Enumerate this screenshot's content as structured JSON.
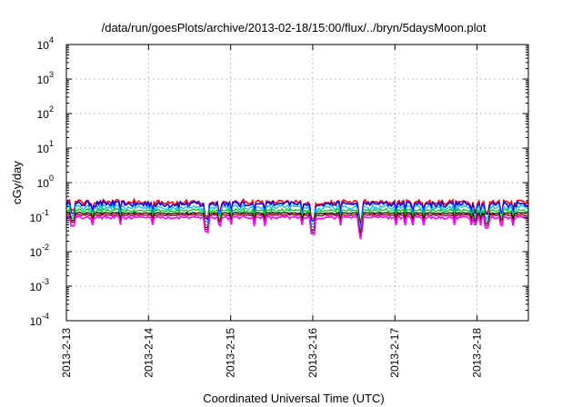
{
  "chart_data": {
    "type": "line",
    "title": "/data/run/goesPlots/archive/2013-02-18/15:00/flux/../bryn/5daysMoon.plot",
    "xlabel": "Coordinated Universal Time (UTC)",
    "ylabel": "cGy/day",
    "yscale": "log",
    "ylim": [
      0.0001,
      10000
    ],
    "y_ticks": [
      {
        "value": 0.0001,
        "base": "10",
        "exp": "-4"
      },
      {
        "value": 0.001,
        "base": "10",
        "exp": "-3"
      },
      {
        "value": 0.01,
        "base": "10",
        "exp": "-2"
      },
      {
        "value": 0.1,
        "base": "10",
        "exp": "-1"
      },
      {
        "value": 1,
        "base": "10",
        "exp": "0"
      },
      {
        "value": 10,
        "base": "10",
        "exp": "1"
      },
      {
        "value": 100,
        "base": "10",
        "exp": "2"
      },
      {
        "value": 1000,
        "base": "10",
        "exp": "3"
      },
      {
        "value": 10000,
        "base": "10",
        "exp": "4"
      }
    ],
    "xlim": [
      "2013-02-13 00:00",
      "2013-02-18 15:00"
    ],
    "x_ticks": [
      "2013-2-13",
      "2013-2-14",
      "2013-2-15",
      "2013-2-16",
      "2013-2-17",
      "2013-2-18"
    ],
    "grid": true,
    "series": [
      {
        "color": "#ff0000",
        "base": 0.27,
        "noise": 0.18
      },
      {
        "color": "#0000ff",
        "base": 0.24,
        "noise": 0.2
      },
      {
        "color": "#00bfff",
        "base": 0.19,
        "noise": 0.2
      },
      {
        "color": "#00cc00",
        "base": 0.155,
        "noise": 0.12
      },
      {
        "color": "#000000",
        "base": 0.13,
        "noise": 0.06
      },
      {
        "color": "#8b0000",
        "base": 0.115,
        "noise": 0.06
      },
      {
        "color": "#ff00ff",
        "base": 0.098,
        "noise": 0.12
      }
    ],
    "dips": [
      {
        "time": "2013-02-14 17:00",
        "factor": 0.38
      },
      {
        "time": "2013-02-16 00:00",
        "factor": 0.32
      },
      {
        "time": "2013-02-16 14:00",
        "factor": 0.4
      },
      {
        "time": "2013-02-18 03:00",
        "factor": 0.5
      }
    ]
  }
}
